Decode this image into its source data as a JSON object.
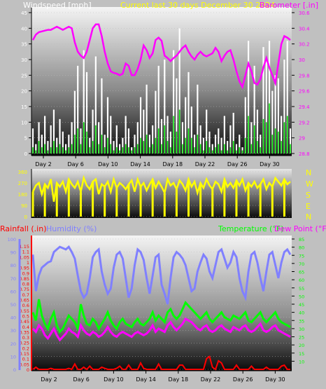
{
  "colors": {
    "background": "#c0c0c0",
    "wind": "#ffffff",
    "gust_line": "#00e000",
    "barometer": "#ff00ff",
    "title": "#ffff00",
    "direction": "#ffff00",
    "rain": "#ff0000",
    "humidity": "#8080ff",
    "temperature": "#00ff00",
    "dewpoint": "#ff00ff",
    "axis": "#000000"
  },
  "header": {
    "wind_label": "Windspeed [mph]",
    "title": "Current last 30 days December 30 2024",
    "baro_label": "Barometer [.in]"
  },
  "bottom_header": {
    "rain_label": "Rainfall (.in)",
    "humidity_label": "Humidity (%)",
    "temp_label": "Temperature (°F)",
    "dew_label": "Dew Point (°F)"
  },
  "compass": [
    "N",
    "W",
    "S",
    "E",
    "N"
  ],
  "chart_data": [
    {
      "type": "line",
      "title": "Current last 30 days December 30 2024",
      "x_tick_labels": [
        "Day 2",
        "Day 6",
        "Day 10",
        "Day 14",
        "Day 18",
        "Day 22",
        "Day 26",
        "Day 30"
      ],
      "y_left_ticks": [
        0,
        5,
        10,
        15,
        20,
        25,
        30,
        35,
        40,
        45
      ],
      "y_right_ticks": [
        28.8,
        29,
        29.2,
        29.4,
        29.6,
        29.8,
        30,
        30.2,
        30.4,
        30.6
      ],
      "ylabel_left": "Windspeed [mph]",
      "ylabel_right": "Barometer [.in]",
      "ylim_left": [
        0,
        45
      ],
      "ylim_right": [
        28.8,
        30.6
      ],
      "series": [
        {
          "name": "Barometer",
          "axis": "right",
          "values": [
            30.25,
            30.32,
            30.35,
            30.36,
            30.37,
            30.38,
            30.38,
            30.4,
            30.42,
            30.4,
            30.38,
            30.4,
            30.42,
            30.4,
            30.22,
            30.1,
            30.05,
            30.02,
            30.1,
            30.25,
            30.4,
            30.45,
            30.45,
            30.3,
            30.1,
            29.95,
            29.85,
            29.83,
            29.82,
            29.8,
            29.82,
            29.95,
            29.92,
            29.8,
            29.8,
            29.88,
            30.0,
            30.18,
            30.12,
            30.02,
            30.08,
            30.25,
            30.28,
            30.24,
            30.05,
            30.02,
            29.98,
            30.02,
            30.05,
            30.1,
            30.15,
            30.18,
            30.1,
            30.04,
            30.0,
            30.06,
            30.1,
            30.06,
            30.04,
            30.06,
            30.08,
            30.15,
            30.1,
            29.98,
            30.05,
            30.1,
            30.12,
            30.0,
            29.85,
            29.72,
            29.65,
            29.8,
            29.95,
            29.85,
            29.7,
            29.68,
            29.75,
            29.9,
            30.02,
            29.9,
            29.8,
            29.7,
            29.95,
            30.2,
            30.3,
            30.28,
            30.25
          ]
        },
        {
          "name": "Windspeed",
          "axis": "left",
          "values": [
            8,
            3,
            10,
            6,
            12,
            4,
            9,
            14,
            5,
            11,
            7,
            3,
            6,
            10,
            20,
            28,
            8,
            33,
            26,
            5,
            14,
            31,
            10,
            24,
            6,
            18,
            12,
            4,
            9,
            3,
            5,
            12,
            8,
            2,
            6,
            10,
            18,
            14,
            22,
            6,
            9,
            20,
            28,
            11,
            30,
            12,
            7,
            33,
            24,
            40,
            10,
            18,
            26,
            15,
            6,
            22,
            9,
            5,
            14,
            7,
            3,
            6,
            8,
            5,
            12,
            4,
            9,
            13,
            3,
            6,
            2,
            18,
            36,
            10,
            28,
            14,
            6,
            34,
            30,
            36,
            20,
            25,
            24,
            12,
            30,
            36,
            8
          ]
        },
        {
          "name": "Gust",
          "axis": "left",
          "values": [
            2,
            1,
            4,
            2,
            3,
            1,
            2,
            4,
            2,
            3,
            2,
            1,
            2,
            3,
            6,
            8,
            3,
            10,
            7,
            2,
            4,
            9,
            3,
            6,
            2,
            5,
            3,
            1,
            2,
            1,
            2,
            3,
            2,
            1,
            2,
            3,
            5,
            4,
            6,
            2,
            3,
            5,
            8,
            3,
            9,
            4,
            2,
            12,
            7,
            14,
            3,
            5,
            8,
            5,
            2,
            6,
            3,
            1,
            4,
            2,
            1,
            2,
            3,
            1,
            3,
            1,
            2,
            4,
            1,
            2,
            1,
            5,
            12,
            3,
            9,
            4,
            2,
            11,
            10,
            16,
            6,
            8,
            7,
            4,
            10,
            12,
            3
          ]
        }
      ]
    },
    {
      "type": "line",
      "title": "",
      "y_left_ticks": [
        0,
        90,
        180,
        270,
        360
      ],
      "ylim": [
        0,
        360
      ],
      "series": [
        {
          "name": "Wind Direction",
          "values": [
            200,
            250,
            270,
            180,
            260,
            230,
            300,
            120,
            270,
            240,
            280,
            200,
            300,
            260,
            230,
            280,
            200,
            310,
            250,
            220,
            280,
            300,
            180,
            260,
            240,
            280,
            200,
            300,
            230,
            270,
            250,
            220,
            260,
            290,
            200,
            300,
            240,
            270,
            210,
            260,
            300,
            230,
            280,
            240,
            190,
            300,
            250,
            270,
            220,
            290,
            260,
            210,
            300,
            240,
            280,
            190,
            270,
            230,
            300,
            250,
            220,
            280,
            260,
            200,
            300,
            240,
            270,
            230,
            290,
            250,
            300,
            210,
            270,
            240,
            280,
            230,
            260,
            300,
            220,
            270,
            240,
            310,
            280,
            250,
            300,
            260,
            280
          ]
        }
      ]
    },
    {
      "type": "line",
      "title": "",
      "y_left_ticks": [
        0,
        10,
        20,
        30,
        40,
        50,
        60,
        70,
        80,
        90,
        100
      ],
      "y_rain_ticks": [
        0,
        0.05,
        0.1,
        0.15,
        0.2,
        0.25,
        0.3,
        0.35,
        0.4,
        0.45,
        0.5,
        0.55,
        0.6,
        0.65,
        0.7,
        0.75,
        0.8,
        0.85,
        0.9,
        0.95,
        1,
        1.05,
        1.1,
        1.15
      ],
      "y_right_ticks": [
        10,
        15,
        20,
        25,
        30,
        35,
        40,
        45,
        50,
        55,
        60,
        65,
        70,
        75,
        80,
        85
      ],
      "ylabel_left_rain": "Rainfall (.in)",
      "ylabel_left_humidity": "Humidity (%)",
      "ylabel_right": "Temperature (°F)",
      "ylabel_right2": "Dew Point (°F)",
      "ylim_humidity": [
        0,
        100
      ],
      "ylim_rain": [
        0,
        1.15
      ],
      "ylim_temp": [
        5,
        85
      ],
      "series": [
        {
          "name": "Humidity",
          "axis": "left",
          "values": [
            88,
            60,
            72,
            78,
            80,
            82,
            83,
            90,
            92,
            94,
            93,
            92,
            94,
            90,
            85,
            72,
            60,
            55,
            58,
            70,
            86,
            90,
            92,
            75,
            65,
            58,
            62,
            78,
            88,
            90,
            85,
            70,
            55,
            62,
            80,
            92,
            90,
            84,
            70,
            58,
            72,
            86,
            88,
            65,
            58,
            50,
            70,
            86,
            90,
            88,
            85,
            80,
            70,
            60,
            62,
            75,
            82,
            88,
            85,
            75,
            70,
            80,
            90,
            92,
            85,
            78,
            82,
            90,
            86,
            70,
            60,
            55,
            75,
            88,
            90,
            82,
            70,
            60,
            75,
            88,
            90,
            80,
            70,
            82,
            90,
            92,
            88
          ]
        },
        {
          "name": "Temperature",
          "axis": "right",
          "values": [
            40,
            35,
            48,
            38,
            33,
            30,
            36,
            40,
            32,
            28,
            30,
            34,
            38,
            36,
            34,
            30,
            45,
            38,
            33,
            32,
            36,
            34,
            30,
            33,
            36,
            40,
            35,
            32,
            30,
            34,
            36,
            33,
            32,
            31,
            34,
            36,
            33,
            32,
            34,
            36,
            40,
            35,
            38,
            36,
            34,
            40,
            42,
            38,
            36,
            38,
            42,
            46,
            44,
            42,
            40,
            38,
            36,
            38,
            40,
            36,
            34,
            36,
            38,
            40,
            37,
            36,
            35,
            38,
            37,
            36,
            38,
            40,
            35,
            34,
            36,
            38,
            40,
            36,
            34,
            36,
            38,
            40,
            36,
            34,
            33,
            32,
            31
          ]
        },
        {
          "name": "Dew Point",
          "axis": "right",
          "values": [
            30,
            28,
            32,
            30,
            26,
            24,
            27,
            30,
            26,
            23,
            25,
            27,
            30,
            28,
            27,
            25,
            32,
            29,
            27,
            26,
            28,
            27,
            25,
            26,
            28,
            31,
            28,
            26,
            25,
            27,
            28,
            27,
            26,
            25,
            27,
            28,
            27,
            26,
            27,
            29,
            32,
            28,
            30,
            29,
            28,
            32,
            34,
            31,
            29,
            31,
            33,
            36,
            35,
            34,
            32,
            30,
            29,
            31,
            32,
            29,
            28,
            29,
            31,
            32,
            30,
            29,
            28,
            31,
            30,
            29,
            31,
            32,
            29,
            28,
            29,
            31,
            33,
            29,
            28,
            29,
            31,
            32,
            29,
            28,
            27,
            26,
            25
          ]
        },
        {
          "name": "Rainfall",
          "axis": "left_rain",
          "values": [
            0,
            0.02,
            0,
            0,
            0,
            0,
            0.01,
            0,
            0,
            0,
            0,
            0,
            0.01,
            0,
            0.05,
            0,
            0,
            0.02,
            0,
            0.03,
            0,
            0,
            0,
            0.02,
            0.01,
            0,
            0,
            0,
            0.01,
            0.03,
            0,
            0,
            0.04,
            0,
            0,
            0,
            0.06,
            0.01,
            0,
            0,
            0,
            0,
            0.05,
            0,
            0,
            0,
            0,
            0,
            0,
            0.04,
            0.04,
            0,
            0,
            0,
            0,
            0,
            0,
            0,
            0.1,
            0.12,
            0.02,
            0,
            0.08,
            0.06,
            0,
            0,
            0,
            0,
            0.04,
            0,
            0,
            0,
            0,
            0.03,
            0,
            0,
            0,
            0,
            0.02,
            0,
            0,
            0,
            0,
            0.03,
            0.04,
            0,
            0
          ]
        }
      ]
    }
  ]
}
